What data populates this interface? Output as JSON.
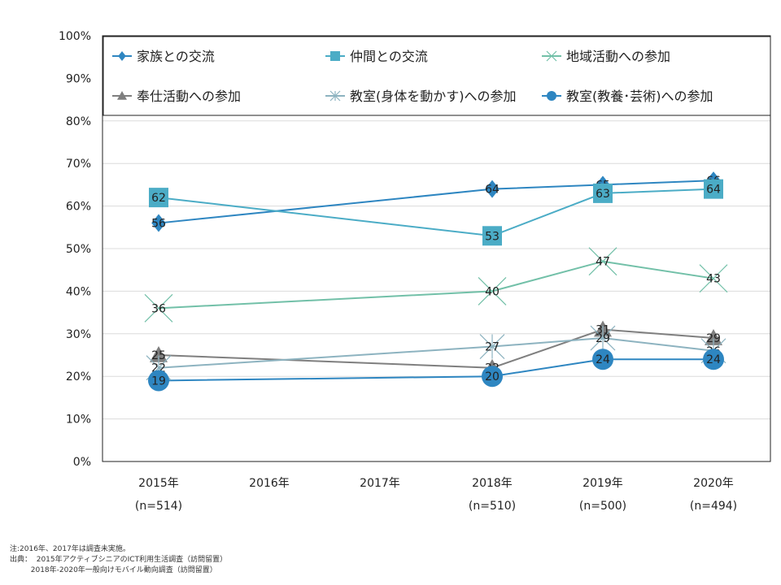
{
  "chart_data": {
    "type": "line",
    "categories": [
      "2015年",
      "2016年",
      "2017年",
      "2018年",
      "2019年",
      "2020年"
    ],
    "sample_sizes": [
      "(n=514)",
      "",
      "",
      "(n=510)",
      "(n=500)",
      "(n=494)"
    ],
    "ylim": [
      0,
      100
    ],
    "yticks": [
      "0%",
      "10%",
      "20%",
      "30%",
      "40%",
      "50%",
      "60%",
      "70%",
      "80%",
      "90%",
      "100%"
    ],
    "grid": true,
    "legend_position": "top",
    "series": [
      {
        "name": "家族との交流",
        "color": "#2e86c1",
        "marker": "diamond",
        "values": [
          56,
          null,
          null,
          64,
          65,
          66
        ]
      },
      {
        "name": "仲間との交流",
        "color": "#4bacc6",
        "marker": "square",
        "values": [
          62,
          null,
          null,
          53,
          63,
          64
        ]
      },
      {
        "name": "地域活動への参加",
        "color": "#72c0a8",
        "marker": "x",
        "values": [
          36,
          null,
          null,
          40,
          47,
          43
        ]
      },
      {
        "name": "奉仕活動への参加",
        "color": "#7f7f7f",
        "marker": "triangle",
        "values": [
          25,
          null,
          null,
          22,
          31,
          29
        ]
      },
      {
        "name": "教室(身体を動かす)への参加",
        "color": "#8db3c0",
        "marker": "star",
        "values": [
          22,
          null,
          null,
          27,
          29,
          26
        ]
      },
      {
        "name": "教室(教養･芸術)への参加",
        "color": "#2e86c1",
        "marker": "circle",
        "values": [
          19,
          null,
          null,
          20,
          24,
          24
        ]
      }
    ]
  },
  "notes": {
    "line1": "注:2016年、2017年は調査未実施。",
    "line2": "出典：  2015年アクティブシニアのICT利用生活調査（訪問留置）",
    "line3": "         2018年-2020年一般向けモバイル動向調査（訪問留置）"
  }
}
